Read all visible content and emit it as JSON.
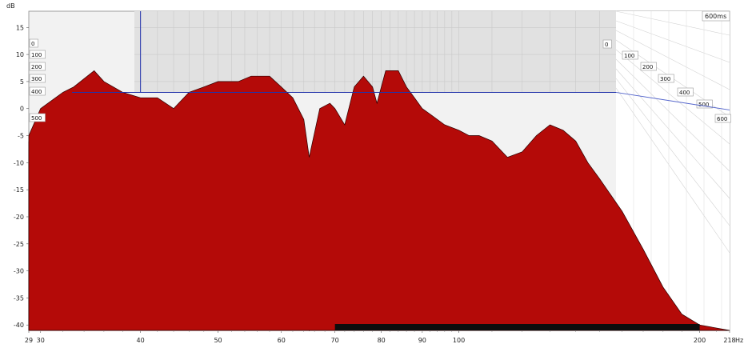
{
  "chart_data": {
    "type": "waterfall",
    "ylabel": "dB",
    "xlabel": "Hz",
    "ylim": [
      -41,
      18
    ],
    "xlim": [
      29,
      218
    ],
    "x_scale": "log",
    "y_ticks": [
      15,
      10,
      5,
      0,
      -5,
      -10,
      -15,
      -20,
      -25,
      -30,
      -35,
      -40
    ],
    "x_ticks": [
      {
        "v": 29,
        "label": "29"
      },
      {
        "v": 30,
        "label": "30"
      },
      {
        "v": 40,
        "label": "40"
      },
      {
        "v": 50,
        "label": "50"
      },
      {
        "v": 60,
        "label": "60"
      },
      {
        "v": 70,
        "label": "70"
      },
      {
        "v": 80,
        "label": "80"
      },
      {
        "v": 90,
        "label": "90"
      },
      {
        "v": 100,
        "label": "100"
      },
      {
        "v": 200,
        "label": "200"
      },
      {
        "v": 218,
        "label": "218"
      }
    ],
    "time_label": "600ms",
    "time_slice_labels_left": [
      "0",
      "100",
      "200",
      "300",
      "400",
      "500"
    ],
    "time_slice_labels_right": [
      "0",
      "100",
      "200",
      "300",
      "400",
      "500",
      "600"
    ],
    "cursor": {
      "freq_hz": 40,
      "level_db": 3
    },
    "slices": 36,
    "grid": true,
    "series": [
      {
        "time_ms": 0,
        "points": [
          [
            29,
            -5
          ],
          [
            30,
            0
          ],
          [
            32,
            3
          ],
          [
            33,
            4
          ],
          [
            35,
            7
          ],
          [
            36,
            5
          ],
          [
            38,
            3
          ],
          [
            40,
            2
          ],
          [
            42,
            2
          ],
          [
            44,
            0
          ],
          [
            46,
            3
          ],
          [
            48,
            4
          ],
          [
            50,
            5
          ],
          [
            53,
            5
          ],
          [
            55,
            6
          ],
          [
            58,
            6
          ],
          [
            60,
            4
          ],
          [
            62,
            2
          ],
          [
            64,
            -2
          ],
          [
            65,
            -9
          ],
          [
            67,
            0
          ],
          [
            69,
            1
          ],
          [
            70,
            0
          ],
          [
            72,
            -3
          ],
          [
            74,
            4
          ],
          [
            76,
            6
          ],
          [
            78,
            4
          ],
          [
            79,
            1
          ],
          [
            81,
            7
          ],
          [
            84,
            7
          ],
          [
            86,
            4
          ],
          [
            88,
            2
          ],
          [
            90,
            0
          ],
          [
            92,
            -1
          ],
          [
            96,
            -3
          ],
          [
            100,
            -4
          ],
          [
            103,
            -5
          ],
          [
            106,
            -5
          ],
          [
            110,
            -6
          ],
          [
            115,
            -9
          ],
          [
            120,
            -8
          ],
          [
            125,
            -5
          ],
          [
            130,
            -3
          ],
          [
            135,
            -4
          ],
          [
            140,
            -6
          ],
          [
            145,
            -10
          ],
          [
            150,
            -13
          ],
          [
            160,
            -19
          ],
          [
            170,
            -26
          ],
          [
            180,
            -33
          ],
          [
            190,
            -38
          ],
          [
            200,
            -40
          ],
          [
            218,
            -41
          ]
        ]
      }
    ]
  }
}
